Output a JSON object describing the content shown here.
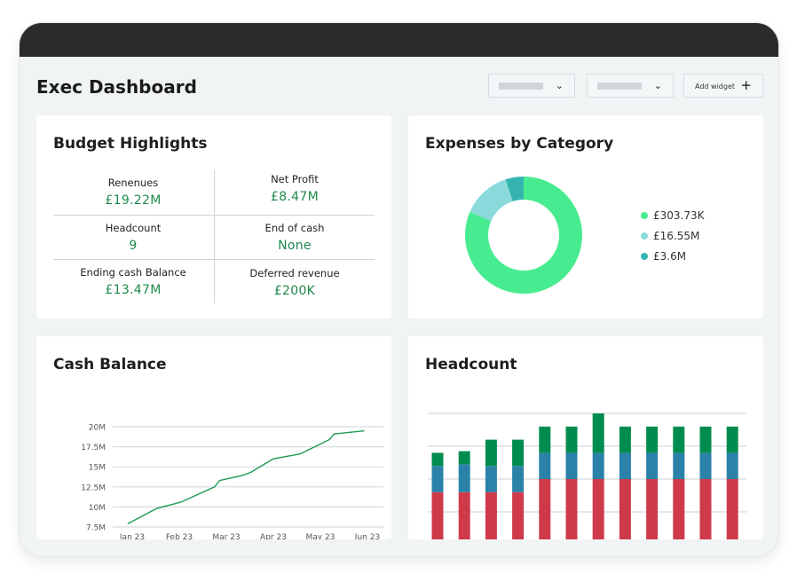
{
  "header": {
    "title": "Exec Dashboard",
    "add_widget_label": "Add widget",
    "add_icon": "plus-icon",
    "dropdown_icon": "chevron-down-icon"
  },
  "budget": {
    "title": "Budget Highlights",
    "kpis": [
      {
        "label": "Renenues",
        "value": "£19.22M"
      },
      {
        "label": "Net Profit",
        "value": "£8.47M"
      },
      {
        "label": "Headcount",
        "value": "9"
      },
      {
        "label": "End of cash",
        "value": "None"
      },
      {
        "label": "Ending cash Balance",
        "value": "£13.47M"
      },
      {
        "label": "Deferred revenue",
        "value": "£200K"
      }
    ]
  },
  "expenses": {
    "title": "Expenses by Category"
  },
  "cash": {
    "title": "Cash Balance"
  },
  "headcount": {
    "title": "Headcount"
  },
  "colors": {
    "accent": "#1f8a4c",
    "donut": [
      "#48ec90",
      "#8cd9db",
      "#36b5b0"
    ],
    "stack": [
      "#cf3a4b",
      "#2a82a8",
      "#008c4e"
    ]
  },
  "chart_data": [
    {
      "type": "pie",
      "variant": "donut",
      "legend_placement": "right",
      "labels": [
        "£303.73K",
        "£16.55M",
        "£3.6M"
      ],
      "values": [
        81.5,
        13.5,
        5
      ]
    },
    {
      "type": "line",
      "ylim": [
        7.5,
        20
      ],
      "yticks": [
        "7.5M",
        "10M",
        "12.5M",
        "15M",
        "17.5M",
        "20M"
      ],
      "ytick_values": [
        7.5,
        10,
        12.5,
        15,
        17.5,
        20
      ],
      "xticks": [
        "Jan 23",
        "Feb 23",
        "Mar 23",
        "Apr 23",
        "May 23",
        "Jun 23"
      ],
      "grid": true,
      "x": [
        "2022-12-29",
        "2023-01-17",
        "2023-02-02",
        "2023-02-22",
        "2023-02-25",
        "2023-03-11",
        "2023-03-17",
        "2023-04-01",
        "2023-04-18",
        "2023-05-07",
        "2023-05-10",
        "2023-05-30"
      ],
      "y": [
        7.9,
        9.8,
        10.6,
        12.5,
        13.3,
        13.9,
        14.3,
        16.0,
        16.6,
        18.4,
        19.1,
        19.5
      ]
    },
    {
      "type": "bar",
      "stacked": true,
      "grid": true,
      "ylim": [
        0,
        4
      ],
      "series": [
        {
          "values": [
            1.6,
            1.6,
            1.6,
            1.6,
            2,
            2,
            2,
            2,
            2,
            2,
            2,
            2
          ]
        },
        {
          "values": [
            0.8,
            0.85,
            0.8,
            0.8,
            0.8,
            0.8,
            0.8,
            0.8,
            0.8,
            0.8,
            0.8,
            0.8
          ]
        },
        {
          "values": [
            0.4,
            0.4,
            0.8,
            0.8,
            0.8,
            0.8,
            1.2,
            0.8,
            0.8,
            0.8,
            0.8,
            0.8
          ]
        }
      ]
    }
  ]
}
